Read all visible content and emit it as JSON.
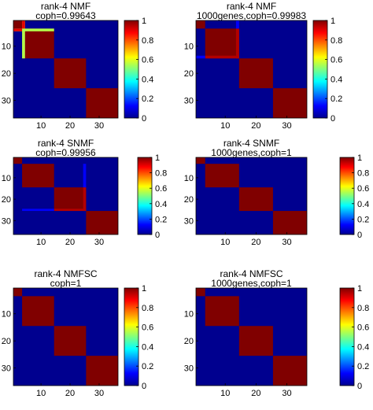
{
  "figure": {
    "background": "#ffffff"
  },
  "chart_data": [
    {
      "type": "heatmap",
      "title": "rank-4 NMF",
      "subtitle": "coph=0.99643",
      "colormap": "jet",
      "matrix_size": 36,
      "diagonal_blocks": [
        [
          1,
          3
        ],
        [
          4,
          14
        ],
        [
          15,
          25
        ],
        [
          26,
          36
        ]
      ],
      "block_value": 1,
      "background_value": 0,
      "highlight_lines": [
        {
          "orientation": "horizontal",
          "row": 4,
          "from": 1,
          "to": 14,
          "value": 0.55
        },
        {
          "orientation": "vertical",
          "col": 4,
          "from": 1,
          "to": 14,
          "value": 0.55
        },
        {
          "orientation": "horizontal",
          "row": 4,
          "from": 1,
          "to": 3,
          "value": 0.9
        },
        {
          "orientation": "vertical",
          "col": 4,
          "from": 1,
          "to": 3,
          "value": 0.9
        }
      ],
      "x_ticks": [
        10,
        20,
        30
      ],
      "y_ticks": [
        10,
        20,
        30
      ],
      "colorbar": {
        "range": [
          0,
          1
        ],
        "ticks": [
          "0",
          "0.2",
          "0.4",
          "0.6",
          "0.8",
          "1"
        ]
      }
    },
    {
      "type": "heatmap",
      "title": "rank-4 NMF",
      "subtitle": "1000genes,coph=0.99983",
      "colormap": "jet",
      "matrix_size": 36,
      "diagonal_blocks": [
        [
          1,
          3
        ],
        [
          4,
          14
        ],
        [
          15,
          25
        ],
        [
          26,
          36
        ]
      ],
      "block_value": 1,
      "background_value": 0,
      "highlight_lines": [
        {
          "orientation": "horizontal",
          "row": 14,
          "from": 4,
          "to": 14,
          "value": 0.95
        },
        {
          "orientation": "vertical",
          "col": 14,
          "from": 4,
          "to": 14,
          "value": 0.95
        },
        {
          "orientation": "horizontal",
          "row": 14,
          "from": 1,
          "to": 3,
          "value": 0.12
        },
        {
          "orientation": "vertical",
          "col": 14,
          "from": 1,
          "to": 3,
          "value": 0.12
        }
      ],
      "x_ticks": [
        10,
        20,
        30
      ],
      "y_ticks": [
        10,
        20,
        30
      ],
      "colorbar": {
        "range": [
          0,
          1
        ],
        "ticks": [
          "0",
          "0.2",
          "0.4",
          "0.6",
          "0.8",
          "1"
        ]
      }
    },
    {
      "type": "heatmap",
      "title": "rank-4 SNMF",
      "subtitle": "coph=0.99956",
      "colormap": "jet",
      "matrix_size": 36,
      "diagonal_blocks": [
        [
          1,
          3
        ],
        [
          4,
          14
        ],
        [
          15,
          25
        ],
        [
          26,
          36
        ]
      ],
      "block_value": 1,
      "background_value": 0,
      "highlight_lines": [
        {
          "orientation": "horizontal",
          "row": 25,
          "from": 15,
          "to": 25,
          "value": 0.95
        },
        {
          "orientation": "vertical",
          "col": 25,
          "from": 15,
          "to": 25,
          "value": 0.95
        },
        {
          "orientation": "horizontal",
          "row": 25,
          "from": 4,
          "to": 14,
          "value": 0.12
        },
        {
          "orientation": "vertical",
          "col": 25,
          "from": 4,
          "to": 14,
          "value": 0.12
        }
      ],
      "x_ticks": [
        10,
        20,
        30
      ],
      "y_ticks": [
        10,
        20,
        30
      ],
      "colorbar": {
        "range": [
          0,
          1
        ],
        "ticks": [
          "0",
          "0.2",
          "0.4",
          "0.6",
          "0.8",
          "1"
        ]
      }
    },
    {
      "type": "heatmap",
      "title": "rank-4 SNMF",
      "subtitle": "1000genes,coph=1",
      "colormap": "jet",
      "matrix_size": 36,
      "diagonal_blocks": [
        [
          1,
          3
        ],
        [
          4,
          14
        ],
        [
          15,
          25
        ],
        [
          26,
          36
        ]
      ],
      "block_value": 1,
      "background_value": 0,
      "highlight_lines": [],
      "x_ticks": [
        10,
        20,
        30
      ],
      "y_ticks": [
        10,
        20,
        30
      ],
      "colorbar": {
        "range": [
          0,
          1
        ],
        "ticks": [
          "0",
          "0.2",
          "0.4",
          "0.6",
          "0.8",
          "1"
        ]
      }
    },
    {
      "type": "heatmap",
      "title": "rank-4 NMFSC",
      "subtitle": "coph=1",
      "colormap": "jet",
      "matrix_size": 36,
      "diagonal_blocks": [
        [
          1,
          3
        ],
        [
          4,
          14
        ],
        [
          15,
          25
        ],
        [
          26,
          36
        ]
      ],
      "block_value": 1,
      "background_value": 0,
      "highlight_lines": [],
      "x_ticks": [
        10,
        20,
        30
      ],
      "y_ticks": [
        10,
        20,
        30
      ],
      "colorbar": {
        "range": [
          0,
          1
        ],
        "ticks": [
          "0",
          "0.2",
          "0.4",
          "0.6",
          "0.8",
          "1"
        ]
      }
    },
    {
      "type": "heatmap",
      "title": "rank-4 NMFSC",
      "subtitle": "1000genes,coph=1",
      "colormap": "jet",
      "matrix_size": 36,
      "diagonal_blocks": [
        [
          1,
          3
        ],
        [
          4,
          14
        ],
        [
          15,
          25
        ],
        [
          26,
          36
        ]
      ],
      "block_value": 1,
      "background_value": 0,
      "highlight_lines": [],
      "x_ticks": [
        10,
        20,
        30
      ],
      "y_ticks": [
        10,
        20,
        30
      ],
      "colorbar": {
        "range": [
          0,
          1
        ],
        "ticks": [
          "0",
          "0.2",
          "0.4",
          "0.6",
          "0.8",
          "1"
        ]
      }
    }
  ]
}
